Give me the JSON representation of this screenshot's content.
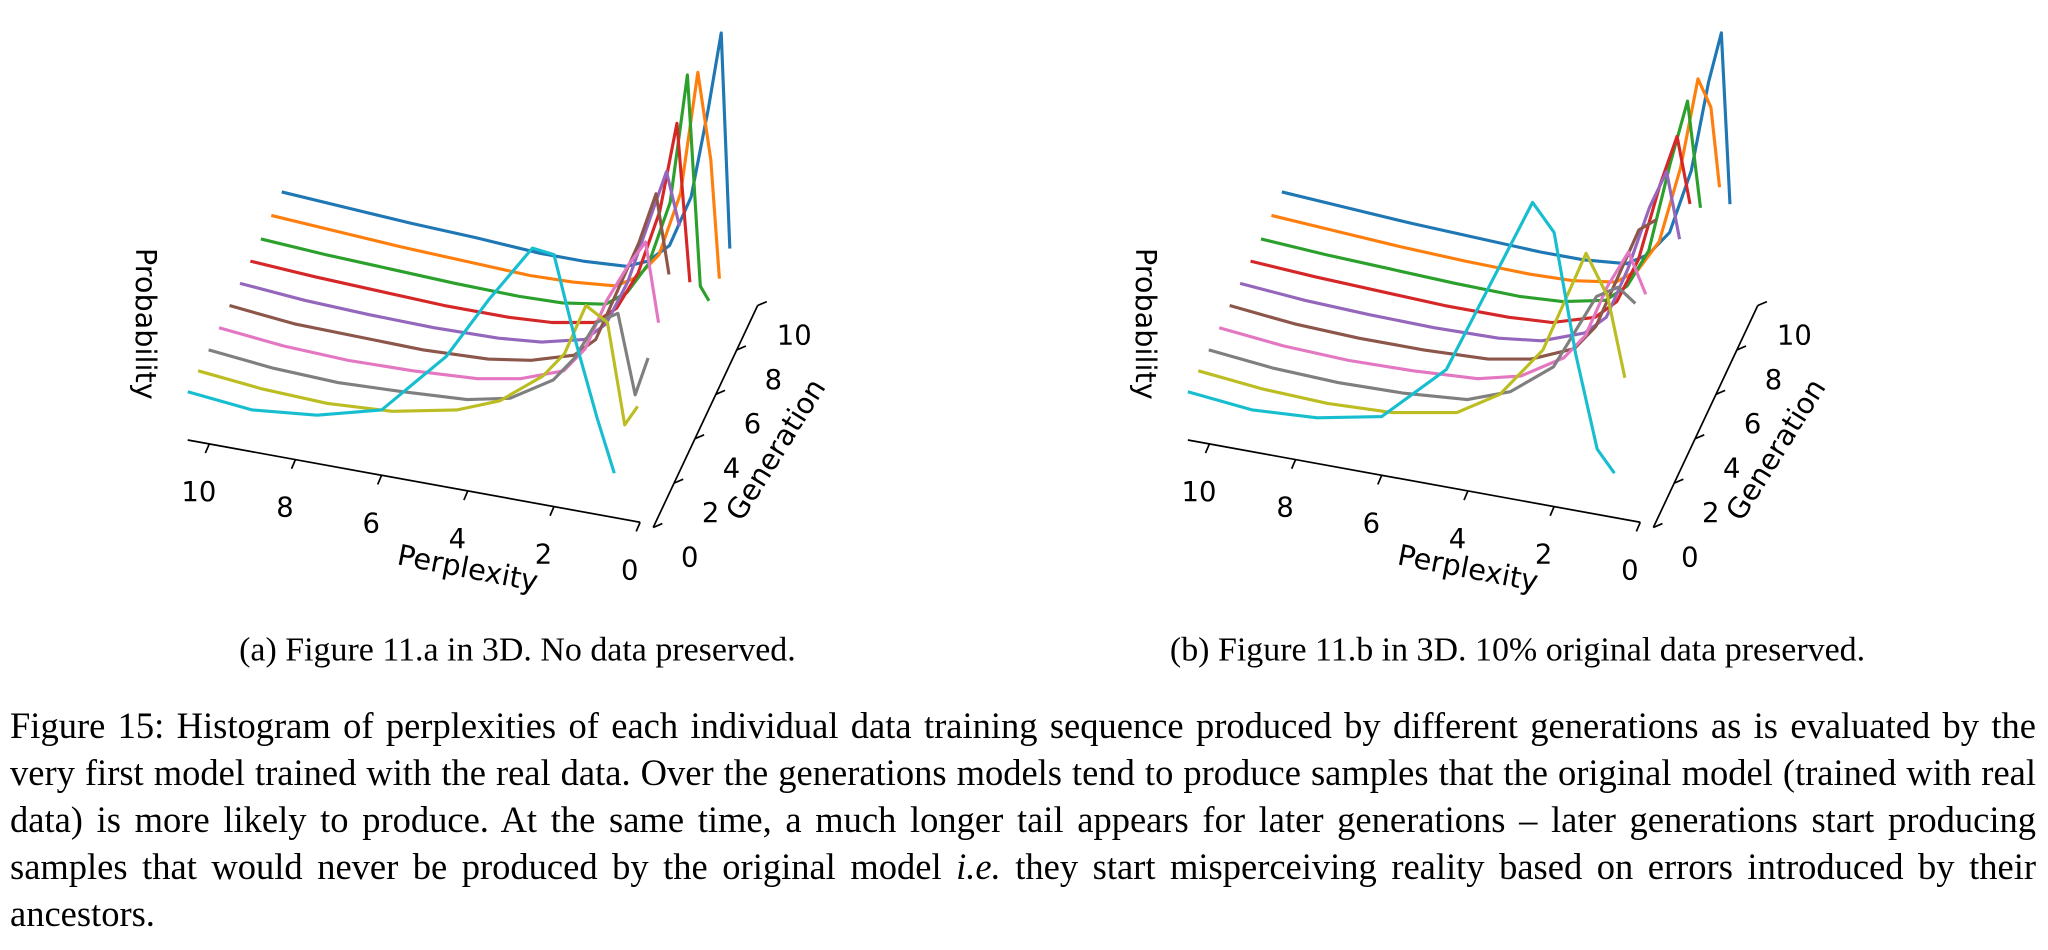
{
  "chart_data": [
    {
      "type": "line3d",
      "caption": "(a) Figure 11.a in 3D. No data preserved.",
      "xlabel": "Perplexity",
      "ylabel": "Generation",
      "zlabel": "Probability",
      "xlim": [
        0,
        10.5
      ],
      "xticks": [
        0,
        2,
        4,
        6,
        8,
        10
      ],
      "ylim": [
        0,
        10
      ],
      "yticks": [
        0,
        2,
        4,
        6,
        8,
        10
      ],
      "zlim": [
        0,
        30
      ],
      "x": [
        10.5,
        9,
        7.5,
        6,
        4.5,
        3.5,
        2.5,
        2,
        1.5,
        1,
        0.6,
        0.3,
        0.1
      ],
      "series": [
        {
          "color": "#1f77b4",
          "y": 9,
          "values": [
            3.7,
            3.4,
            3.1,
            2.9,
            2.6,
            2.6,
            2.8,
            3.5,
            5,
            9,
            16,
            22,
            5.6
          ]
        },
        {
          "color": "#ff7f0e",
          "y": 8,
          "values": [
            3.6,
            3.3,
            3,
            2.8,
            2.6,
            2.7,
            3,
            4,
            6,
            11,
            20.5,
            14,
            5
          ]
        },
        {
          "color": "#2ca02c",
          "y": 7,
          "values": [
            3.5,
            3.2,
            3,
            2.8,
            2.7,
            2.8,
            3.3,
            4.5,
            7,
            12,
            22,
            6,
            5
          ]
        },
        {
          "color": "#d62728",
          "y": 6,
          "values": [
            3.5,
            3.2,
            3,
            2.8,
            2.8,
            3,
            3.6,
            5,
            8,
            13,
            20,
            8,
            null
          ]
        },
        {
          "color": "#9467bd",
          "y": 5,
          "values": [
            3.5,
            3.1,
            2.9,
            2.8,
            2.9,
            3.2,
            4,
            5.5,
            9,
            14,
            18,
            14,
            null
          ]
        },
        {
          "color": "#8c564b",
          "y": 4,
          "values": [
            3.5,
            3,
            2.9,
            2.8,
            3,
            3.5,
            4.5,
            6,
            10,
            14,
            18,
            12,
            null
          ]
        },
        {
          "color": "#e377c2",
          "y": 3,
          "values": [
            3.5,
            3,
            2.8,
            2.9,
            3.2,
            3.8,
            5,
            7,
            11,
            14,
            16,
            10,
            null
          ]
        },
        {
          "color": "#7f7f7f",
          "y": 2,
          "values": [
            3.5,
            3,
            2.8,
            3,
            3.3,
            4,
            6,
            8,
            11,
            12,
            6,
            9,
            null
          ]
        },
        {
          "color": "#bcbd22",
          "y": 1,
          "values": [
            3.6,
            3.1,
            2.9,
            3.2,
            4.2,
            5.5,
            8,
            10,
            14,
            13,
            5.4,
            7,
            null
          ]
        },
        {
          "color": "#17becf",
          "y": 0,
          "values": [
            3.7,
            3.2,
            3.7,
            5,
            10,
            15,
            19.5,
            19.3,
            13,
            7.4,
            3.4,
            null,
            null
          ]
        }
      ]
    },
    {
      "type": "line3d",
      "caption": "(b) Figure 11.b in 3D. 10% original data preserved.",
      "xlabel": "Perplexity",
      "ylabel": "Generation",
      "zlabel": "Probability",
      "xlim": [
        0,
        10.5
      ],
      "xticks": [
        0,
        2,
        4,
        6,
        8,
        10
      ],
      "ylim": [
        0,
        10
      ],
      "yticks": [
        0,
        2,
        4,
        6,
        8,
        10
      ],
      "zlim": [
        0,
        30
      ],
      "x": [
        10.5,
        9,
        7.5,
        6,
        4.5,
        3.5,
        2.5,
        2,
        1.5,
        1,
        0.6,
        0.3,
        0.1
      ],
      "series": [
        {
          "color": "#1f77b4",
          "y": 9,
          "values": [
            3.7,
            3.4,
            3.1,
            2.9,
            2.7,
            2.7,
            3,
            4,
            6,
            11,
            18,
            22,
            9
          ]
        },
        {
          "color": "#ff7f0e",
          "y": 8,
          "values": [
            3.6,
            3.3,
            3,
            2.8,
            2.7,
            2.8,
            3.3,
            4.5,
            7,
            13,
            20,
            18,
            12
          ]
        },
        {
          "color": "#2ca02c",
          "y": 7,
          "values": [
            3.5,
            3.2,
            3,
            2.8,
            2.7,
            2.9,
            3.6,
            5,
            8,
            15,
            20,
            12,
            null
          ]
        },
        {
          "color": "#d62728",
          "y": 6,
          "values": [
            3.5,
            3.2,
            3,
            2.8,
            2.8,
            3,
            4,
            5.5,
            9,
            15,
            19,
            14,
            null
          ]
        },
        {
          "color": "#9467bd",
          "y": 5,
          "values": [
            3.5,
            3.1,
            2.9,
            2.8,
            2.9,
            3.3,
            4.5,
            6,
            10,
            15,
            18,
            13,
            null
          ]
        },
        {
          "color": "#8c564b",
          "y": 4,
          "values": [
            3.5,
            3,
            2.8,
            2.8,
            3,
            3.6,
            5,
            7,
            11,
            15,
            16,
            null,
            null
          ]
        },
        {
          "color": "#e377c2",
          "y": 3,
          "values": [
            3.5,
            3,
            2.8,
            2.9,
            3.2,
            4,
            6,
            8,
            12,
            15,
            12,
            null,
            null
          ]
        },
        {
          "color": "#7f7f7f",
          "y": 2,
          "values": [
            3.5,
            3,
            2.8,
            2.9,
            3.3,
            4.5,
            7,
            10,
            13,
            14,
            13,
            null,
            null
          ]
        },
        {
          "color": "#bcbd22",
          "y": 1,
          "values": [
            3.6,
            3.1,
            2.9,
            3.1,
            4,
            6,
            10,
            14,
            18,
            15,
            9,
            null,
            null
          ]
        },
        {
          "color": "#17becf",
          "y": 0,
          "values": [
            3.7,
            3.2,
            3.5,
            4.5,
            9,
            16,
            23,
            21,
            12,
            5,
            3.4,
            null,
            null
          ]
        }
      ]
    }
  ],
  "caption": {
    "text_before": "Figure 15: Histogram of perplexities of each individual data training sequence produced by different generations as is evaluated by the very first model trained with the real data. Over the generations models tend to produce samples that the original model (trained with real data) is more likely to produce. At the same time, a much longer tail appears for later generations – later generations start producing samples that would never be produced by the original model ",
    "italic": "i.e.",
    "text_after": " they start misperceiving reality based on errors introduced by their ancestors."
  }
}
